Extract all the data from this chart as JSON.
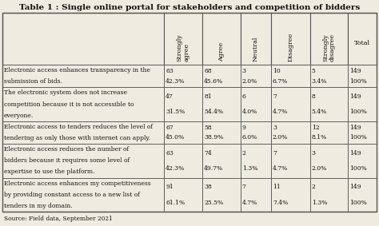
{
  "title": "Table 1 : Single online portal for stakeholders and competition of bidders",
  "col_headers": [
    "Strongly\nagree",
    "Agree",
    "Neutral",
    "Disagree",
    "Strongly\ndisagree",
    "Total"
  ],
  "rows": [
    {
      "text_lines": [
        "Electronic access enhances transparency in the",
        "submission of bids."
      ],
      "values": [
        [
          "63",
          "68",
          "3",
          "10",
          "5",
          "149"
        ],
        [
          "42.3%",
          "45.6%",
          "2.0%",
          "6.7%",
          "3.4%",
          "100%"
        ]
      ]
    },
    {
      "text_lines": [
        "The electronic system does not increase",
        "competition because it is not accessible to",
        "everyone."
      ],
      "values": [
        [
          "47",
          "81",
          "6",
          "7",
          "8",
          "149"
        ],
        [
          "31.5%",
          "54.4%",
          "4.0%",
          "4.7%",
          "5.4%",
          "100%"
        ]
      ]
    },
    {
      "text_lines": [
        "Electronic access to tenders reduces the level of",
        "tendering as only those with internet can apply."
      ],
      "values": [
        [
          "67",
          "58",
          "9",
          "3",
          "12",
          "149"
        ],
        [
          "45.0%",
          "38.9%",
          "6.0%",
          "2.0%",
          "8.1%",
          "100%"
        ]
      ]
    },
    {
      "text_lines": [
        "Electronic access reduces the number of",
        "bidders because it requires some level of",
        "expertise to use the platform."
      ],
      "values": [
        [
          "63",
          "74",
          "2",
          "7",
          "3",
          "149"
        ],
        [
          "42.3%",
          "49.7%",
          "1.3%",
          "4.7%",
          "2.0%",
          "100%"
        ]
      ]
    },
    {
      "text_lines": [
        "Electronic access enhances my competitiveness",
        "by providing constant access to a new list of",
        "tenders in my domain."
      ],
      "values": [
        [
          "91",
          "38",
          "7",
          "11",
          "2",
          "149"
        ],
        [
          "61.1%",
          "25.5%",
          "4.7%",
          "7.4%",
          "1.3%",
          "100%"
        ]
      ]
    }
  ],
  "source": "Source: Field data, September 2021",
  "bg_color": "#f0ebe0",
  "border_color": "#555555",
  "text_color": "#111111",
  "font_size": 5.8,
  "title_font_size": 7.5
}
